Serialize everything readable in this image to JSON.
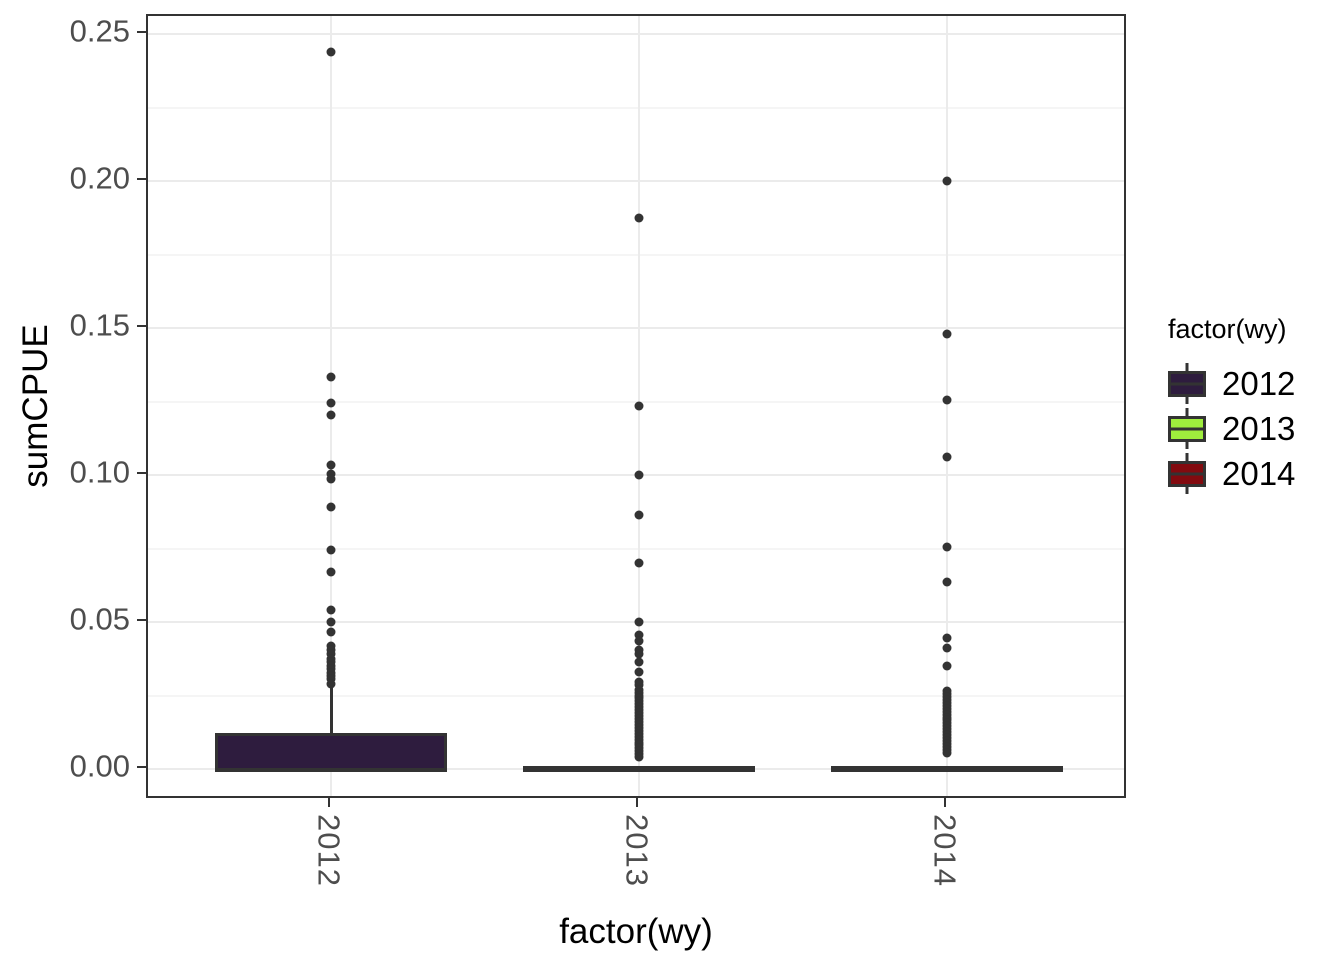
{
  "chart_data": {
    "type": "boxplot",
    "title": "",
    "xlabel": "factor(wy)",
    "ylabel": "sumCPUE",
    "categories": [
      "2012",
      "2013",
      "2014"
    ],
    "ylim": [
      -0.0105,
      0.256
    ],
    "yticks": [
      0.0,
      0.05,
      0.1,
      0.15,
      0.2,
      0.25
    ],
    "ytick_labels": [
      "0.00",
      "0.05",
      "0.10",
      "0.15",
      "0.20",
      "0.25"
    ],
    "grid": "major and minor horizontal, major vertical at categories",
    "legend": {
      "title": "factor(wy)",
      "position": "right",
      "entries": [
        {
          "label": "2012",
          "fill": "#2E1C3E"
        },
        {
          "label": "2013",
          "fill": "#9FEE3D"
        },
        {
          "label": "2014",
          "fill": "#820A0F"
        }
      ]
    },
    "series": [
      {
        "name": "2012",
        "fill": "#2E1C3E",
        "box": {
          "lower_whisker": 0.0,
          "q1": 0.0,
          "median": 0.0,
          "q3": 0.012,
          "upper_whisker": 0.028
        },
        "outliers": [
          0.244,
          0.1335,
          0.1245,
          0.1205,
          0.1035,
          0.1005,
          0.0985,
          0.089,
          0.0745,
          0.067,
          0.054,
          0.05,
          0.0465,
          0.042,
          0.0405,
          0.039,
          0.0375,
          0.0365,
          0.035,
          0.034,
          0.0325,
          0.0315,
          0.0305,
          0.029
        ]
      },
      {
        "name": "2013",
        "fill": "#9FEE3D",
        "box": {
          "lower_whisker": 0.0,
          "q1": 0.0,
          "median": 0.0,
          "q3": 0.001,
          "upper_whisker": 0.001
        },
        "outliers": [
          0.1875,
          0.1235,
          0.1,
          0.0865,
          0.07,
          0.05,
          0.0455,
          0.0435,
          0.0405,
          0.039,
          0.0365,
          0.033,
          0.0295,
          0.0285,
          0.027,
          0.026,
          0.025,
          0.024,
          0.023,
          0.022,
          0.021,
          0.02,
          0.019,
          0.018,
          0.017,
          0.016,
          0.015,
          0.014,
          0.013,
          0.012,
          0.011,
          0.01,
          0.009,
          0.008,
          0.007,
          0.006,
          0.005,
          0.004
        ]
      },
      {
        "name": "2014",
        "fill": "#820A0F",
        "box": {
          "lower_whisker": 0.0,
          "q1": 0.0,
          "median": 0.0,
          "q3": 0.001,
          "upper_whisker": 0.001
        },
        "outliers": [
          0.2,
          0.148,
          0.1255,
          0.106,
          0.0755,
          0.0635,
          0.0445,
          0.041,
          0.035,
          0.0265,
          0.0255,
          0.0245,
          0.0235,
          0.0225,
          0.0215,
          0.0205,
          0.0195,
          0.0185,
          0.0175,
          0.0165,
          0.0155,
          0.0145,
          0.0135,
          0.0125,
          0.0115,
          0.0105,
          0.0095,
          0.0085,
          0.0075,
          0.0065,
          0.0055
        ]
      }
    ],
    "colors": {
      "axis_text": "#4d4d4d",
      "axis_title": "#000000",
      "panel_border": "#333333",
      "grid_major": "#ebebeb",
      "grid_minor": "#f5f5f5",
      "point": "#333333"
    }
  }
}
